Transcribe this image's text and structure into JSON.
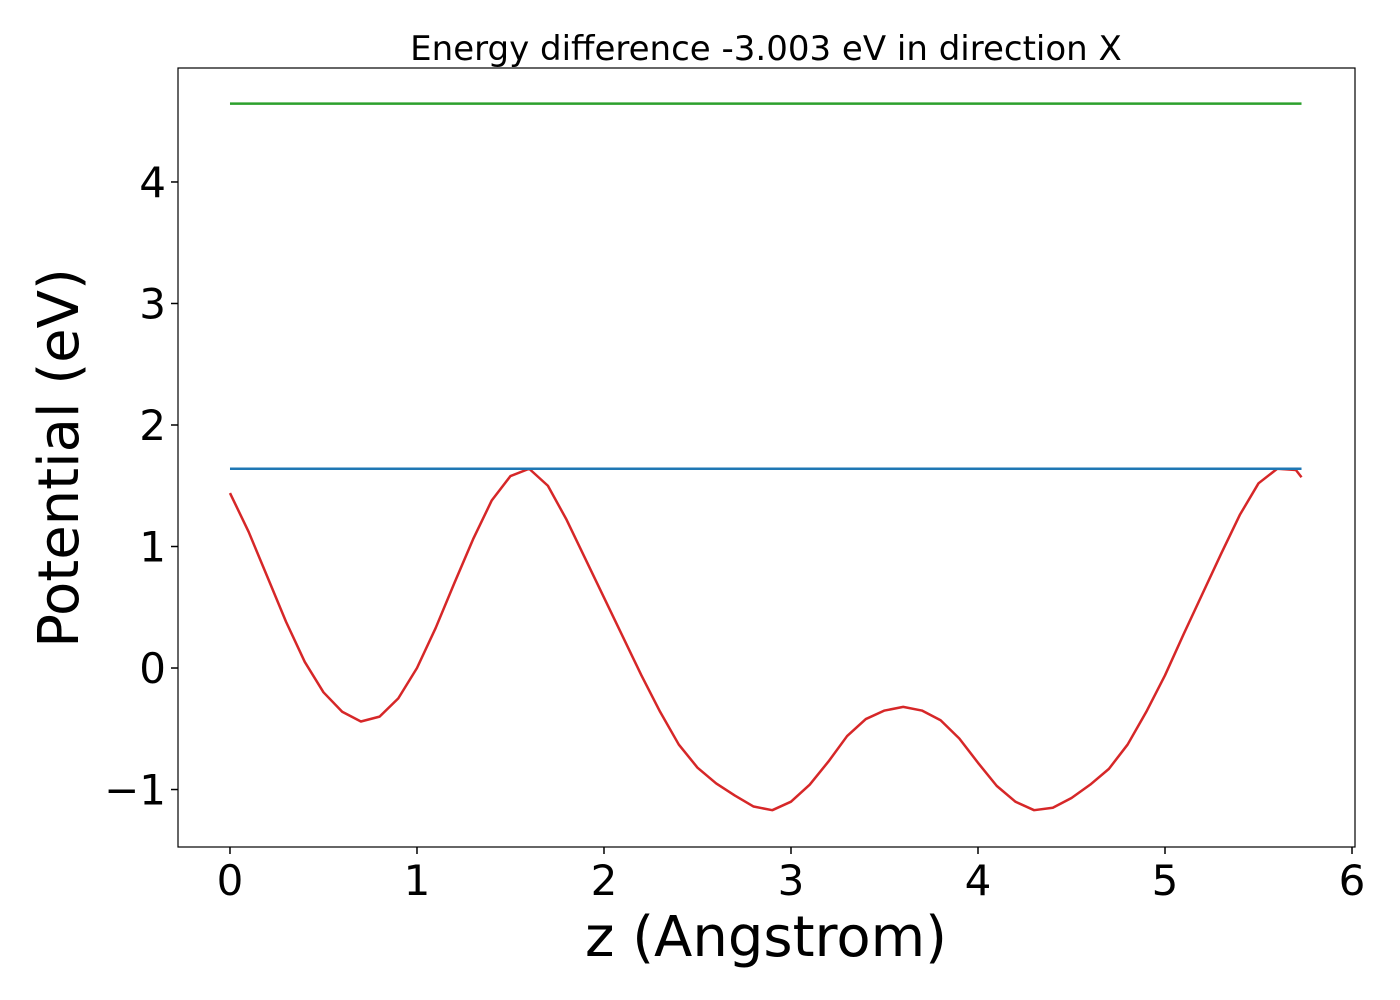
{
  "chart_data": {
    "type": "line",
    "title": "Energy difference -3.003 eV in direction X",
    "xlabel": "z (Angstrom)",
    "ylabel": "Potential (eV)",
    "xlim": [
      -0.278,
      6.016
    ],
    "ylim": [
      -1.473,
      4.938
    ],
    "xticks": [
      0,
      1,
      2,
      3,
      4,
      5,
      6
    ],
    "yticks": [
      {
        "value": -1,
        "label": "−1"
      },
      0,
      1,
      2,
      3,
      4
    ],
    "series": [
      {
        "color": "#d62728",
        "x": [
          0,
          0.1,
          0.2,
          0.3,
          0.4,
          0.5,
          0.6,
          0.7,
          0.8,
          0.9,
          1.0,
          1.1,
          1.2,
          1.3,
          1.4,
          1.5,
          1.6,
          1.7,
          1.8,
          1.9,
          2.0,
          2.1,
          2.2,
          2.3,
          2.4,
          2.5,
          2.6,
          2.7,
          2.8,
          2.9,
          3.0,
          3.1,
          3.2,
          3.3,
          3.4,
          3.5,
          3.6,
          3.7,
          3.8,
          3.9,
          4.0,
          4.1,
          4.2,
          4.3,
          4.4,
          4.5,
          4.6,
          4.7,
          4.8,
          4.9,
          5.0,
          5.1,
          5.2,
          5.3,
          5.4,
          5.5,
          5.6,
          5.7,
          5.73
        ],
        "values": [
          1.44,
          1.12,
          0.75,
          0.38,
          0.05,
          -0.2,
          -0.36,
          -0.44,
          -0.4,
          -0.25,
          0.0,
          0.33,
          0.7,
          1.06,
          1.38,
          1.58,
          1.64,
          1.5,
          1.22,
          0.9,
          0.58,
          0.26,
          -0.06,
          -0.36,
          -0.63,
          -0.82,
          -0.95,
          -1.05,
          -1.14,
          -1.17,
          -1.1,
          -0.96,
          -0.77,
          -0.56,
          -0.42,
          -0.35,
          -0.32,
          -0.35,
          -0.43,
          -0.58,
          -0.78,
          -0.97,
          -1.1,
          -1.17,
          -1.15,
          -1.07,
          -0.96,
          -0.83,
          -0.63,
          -0.36,
          -0.06,
          0.28,
          0.61,
          0.94,
          1.26,
          1.52,
          1.64,
          1.63,
          1.57
        ]
      },
      {
        "color": "#1f77b4",
        "x": [
          0,
          5.73
        ],
        "values": [
          1.64,
          1.64
        ]
      },
      {
        "color": "#2ca02c",
        "x": [
          0,
          5.73
        ],
        "values": [
          4.645,
          4.645
        ]
      }
    ]
  }
}
